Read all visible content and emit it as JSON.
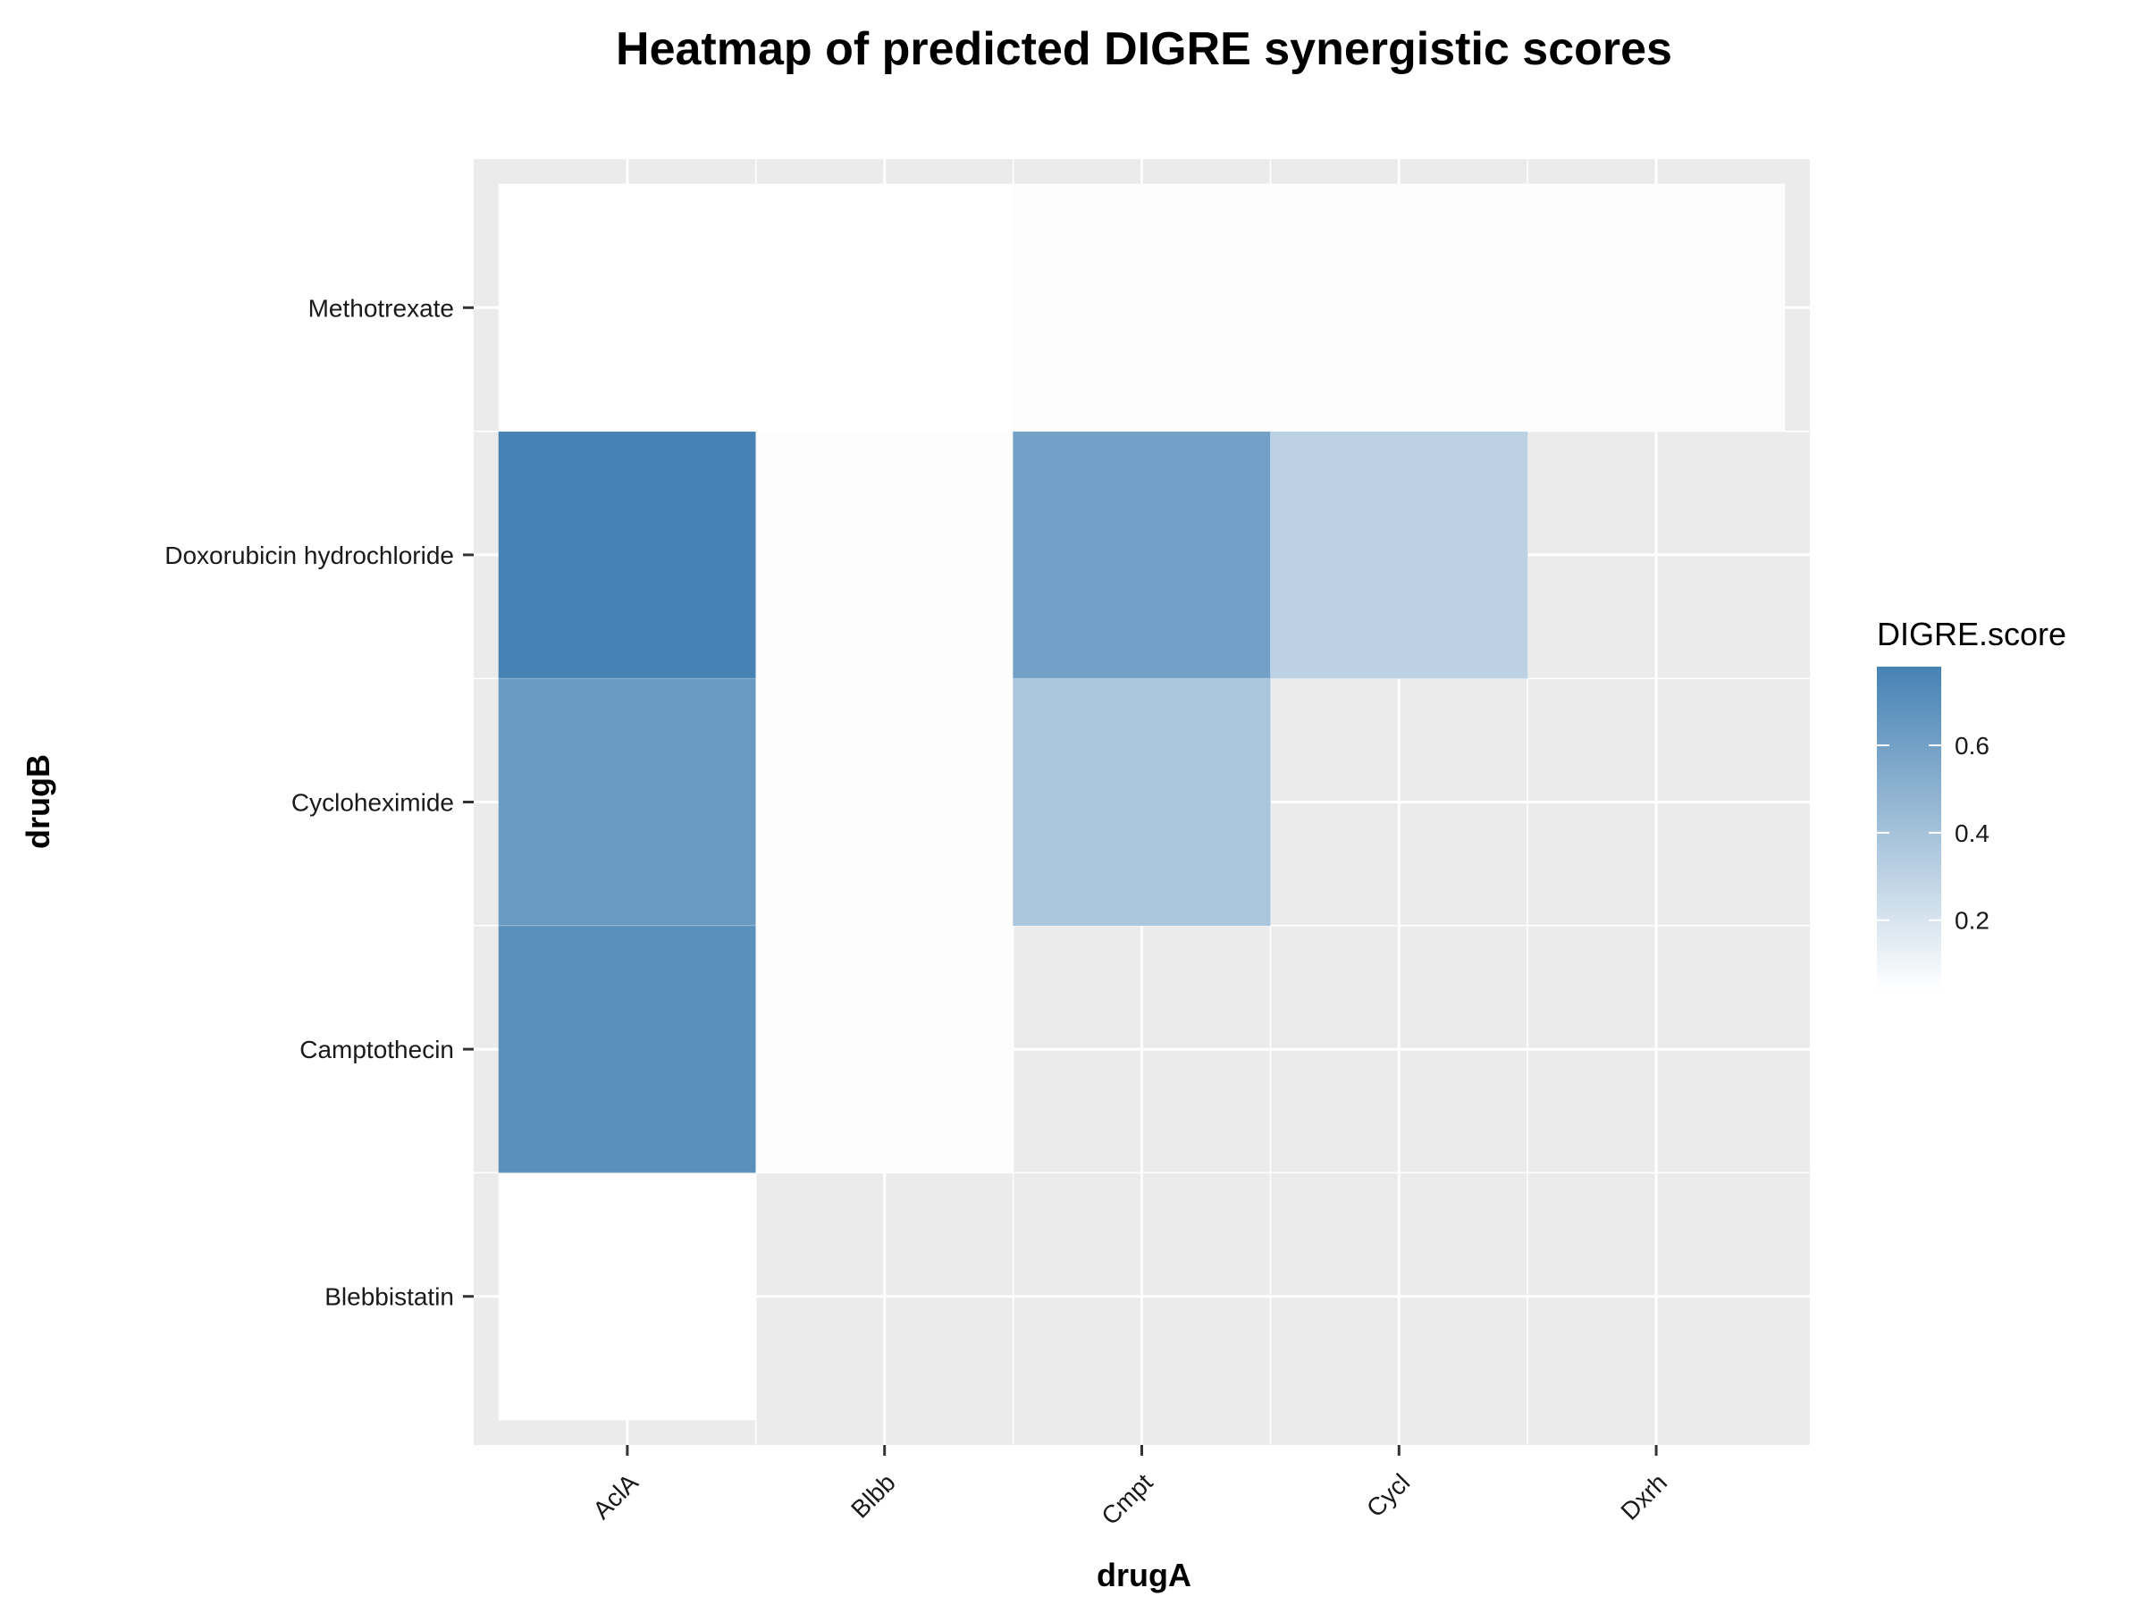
{
  "chart_data": {
    "type": "heatmap",
    "title": "Heatmap of predicted DIGRE synergistic scores",
    "xlabel": "drugA",
    "ylabel": "drugB",
    "x_categories": [
      "AclA",
      "Blbb",
      "Cmpt",
      "Cycl",
      "Dxrh"
    ],
    "y_categories": [
      "Blebbistatin",
      "Camptothecin",
      "Cycloheximide",
      "Doxorubicin hydrochloride",
      "Methotrexate"
    ],
    "cells": [
      {
        "x": "AclA",
        "y": "Blebbistatin",
        "value": 0.04
      },
      {
        "x": "AclA",
        "y": "Camptothecin",
        "value": 0.7
      },
      {
        "x": "AclA",
        "y": "Cycloheximide",
        "value": 0.64
      },
      {
        "x": "AclA",
        "y": "Doxorubicin hydrochloride",
        "value": 0.78
      },
      {
        "x": "AclA",
        "y": "Methotrexate",
        "value": 0.04
      },
      {
        "x": "Blbb",
        "y": "Camptothecin",
        "value": 0.05
      },
      {
        "x": "Blbb",
        "y": "Cycloheximide",
        "value": 0.05
      },
      {
        "x": "Blbb",
        "y": "Doxorubicin hydrochloride",
        "value": 0.05
      },
      {
        "x": "Blbb",
        "y": "Methotrexate",
        "value": 0.04
      },
      {
        "x": "Cmpt",
        "y": "Cycloheximide",
        "value": 0.38
      },
      {
        "x": "Cmpt",
        "y": "Doxorubicin hydrochloride",
        "value": 0.6
      },
      {
        "x": "Cmpt",
        "y": "Methotrexate",
        "value": 0.05
      },
      {
        "x": "Cycl",
        "y": "Doxorubicin hydrochloride",
        "value": 0.31
      },
      {
        "x": "Cycl",
        "y": "Methotrexate",
        "value": 0.05
      },
      {
        "x": "Dxrh",
        "y": "Methotrexate",
        "value": 0.05
      }
    ],
    "legend": {
      "title": "DIGRE.score",
      "ticks": [
        0.2,
        0.4,
        0.6
      ],
      "tick_labels": [
        "0.2",
        "0.4",
        "0.6"
      ],
      "range": [
        0.04,
        0.78
      ],
      "low_color": "#ffffff",
      "high_color": "#4682b4",
      "placement": "right"
    },
    "panel_color": "#ebebeb",
    "grid_color": "#ffffff",
    "grid": true
  }
}
